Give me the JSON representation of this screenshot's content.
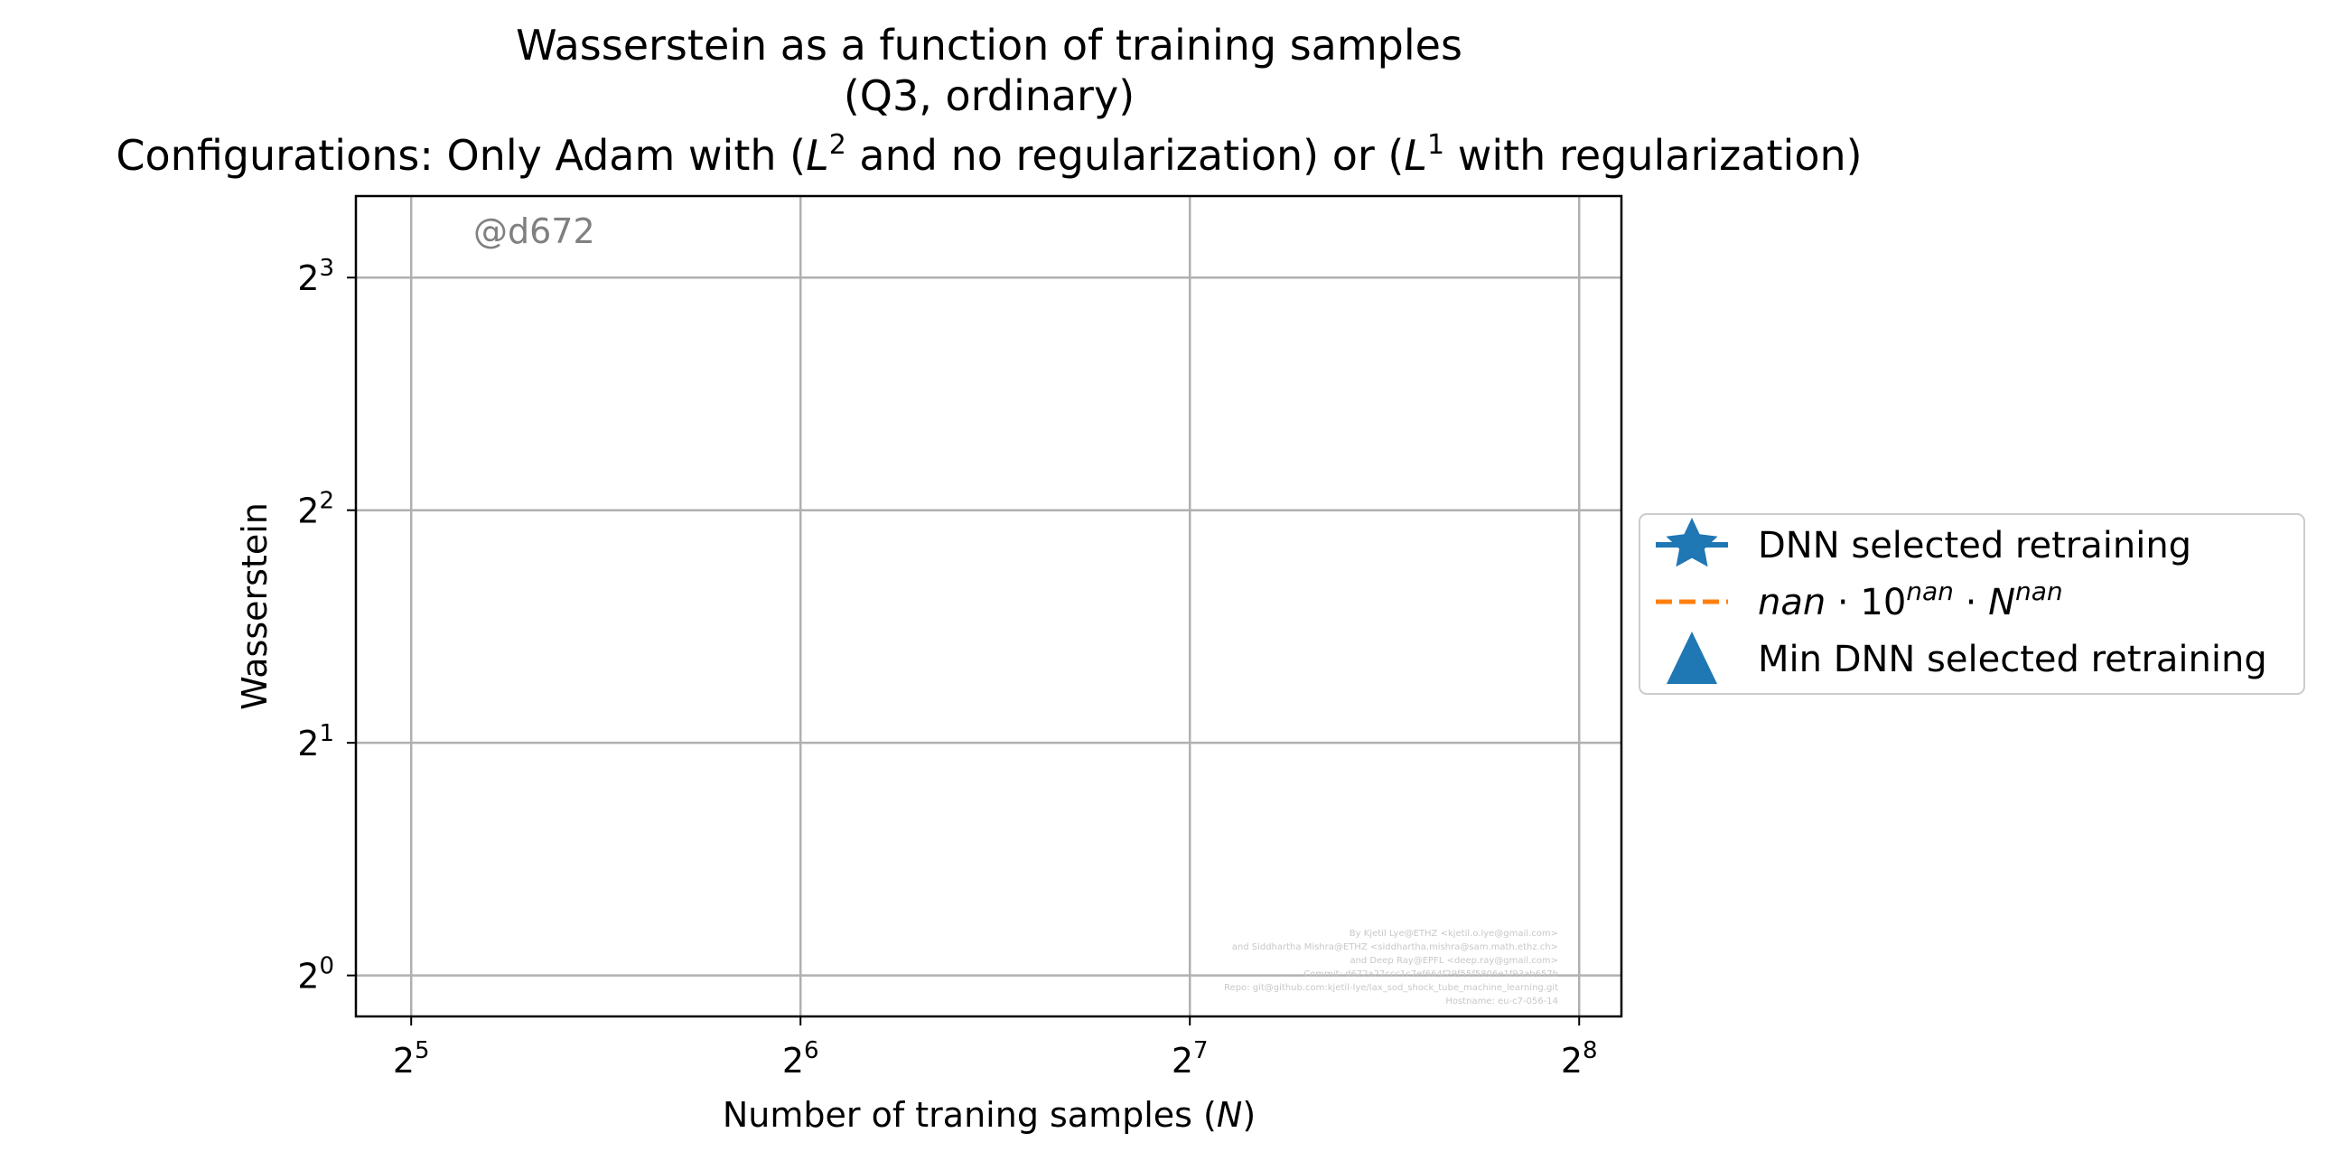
{
  "chart_data": {
    "type": "line",
    "title": {
      "line1": "Wasserstein as a function of training samples",
      "line2": "(Q3, ordinary)",
      "line3_before_L2": "Configurations: Only Adam with (",
      "L": "L",
      "sup2": "2",
      "line3_middle": " and no regularization) or (",
      "sup1": "1",
      "line3_after_L1": " with regularization)"
    },
    "xlabel": {
      "before": "Number of traning samples (",
      "var": "N",
      "after": ")"
    },
    "ylabel": "Wasserstein",
    "xscale": "log2",
    "yscale": "log2",
    "xlim": [
      29.0,
      276.0
    ],
    "ylim": [
      0.885,
      10.2
    ],
    "xticks": [
      {
        "value": 32,
        "base": "2",
        "exp": "5"
      },
      {
        "value": 64,
        "base": "2",
        "exp": "6"
      },
      {
        "value": 128,
        "base": "2",
        "exp": "7"
      },
      {
        "value": 256,
        "base": "2",
        "exp": "8"
      }
    ],
    "yticks": [
      {
        "value": 1,
        "base": "2",
        "exp": "0"
      },
      {
        "value": 2,
        "base": "2",
        "exp": "1"
      },
      {
        "value": 4,
        "base": "2",
        "exp": "2"
      },
      {
        "value": 8,
        "base": "2",
        "exp": "3"
      }
    ],
    "grid": true,
    "legend_position": "outside-right",
    "series": [
      {
        "name": "DNN selected retraining",
        "marker": "star",
        "color": "#1f77b4",
        "values": []
      },
      {
        "name": "nan·10^nan·N^nan",
        "line_style": "dashed",
        "color": "#ff7f0e",
        "values": []
      },
      {
        "name": "Min DNN selected retraining",
        "marker": "triangle",
        "color": "#1f77b4",
        "values": []
      }
    ],
    "legend": [
      {
        "text": "DNN selected retraining"
      },
      {
        "parts": [
          {
            "t": "nan",
            "italic": true
          },
          {
            "t": " · 10"
          },
          {
            "t": "nan",
            "italic": true,
            "sup": true
          },
          {
            "t": " · "
          },
          {
            "t": "N",
            "italic": true
          },
          {
            "t": "nan",
            "italic": true,
            "sup": true
          }
        ]
      },
      {
        "text": "Min DNN selected retraining"
      }
    ],
    "watermark": "@d672",
    "credits": [
      "By Kjetil Lye@ETHZ <kjetil.o.lye@gmail.com>",
      "and Siddhartha Mishra@ETHZ <siddhartha.mishra@sam.math.ethz.ch>",
      "and Deep Ray@EPFL <deep.ray@gmail.com>",
      "Commit: d672a27ccc1c7ef664f29f55f5806e1f93ab657b",
      "Repo: git@github.com:kjetil-lye/lax_sod_shock_tube_machine_learning.git",
      "Hostname: eu-c7-056-14"
    ]
  }
}
